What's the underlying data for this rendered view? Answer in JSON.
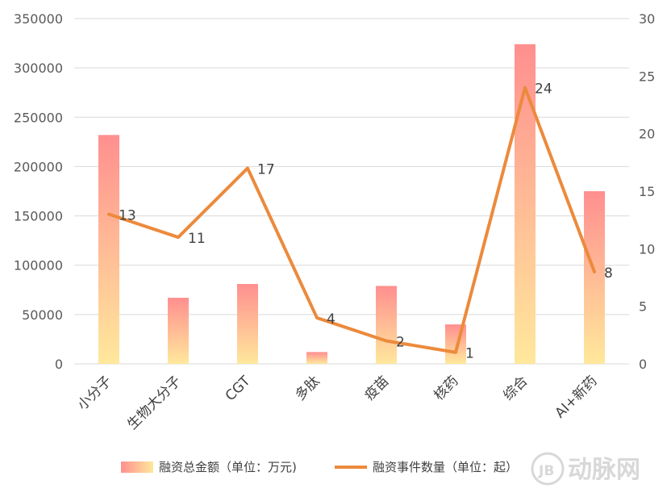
{
  "chart_data": {
    "type": "bar+line",
    "categories": [
      "小分子",
      "生物大分子",
      "CGT",
      "多肽",
      "疫苗",
      "核药",
      "综合",
      "AI+新药"
    ],
    "series": [
      {
        "name": "融资总金额（单位：万元)",
        "type": "bar",
        "axis": "left",
        "values": [
          232000,
          67000,
          81000,
          12000,
          79000,
          40000,
          324000,
          175000
        ]
      },
      {
        "name": "融资事件数量（单位：起）",
        "type": "line",
        "axis": "right",
        "values": [
          13,
          11,
          17,
          4,
          2,
          1,
          24,
          8
        ]
      }
    ],
    "y_left": {
      "ylim": [
        0,
        350000
      ],
      "ticks": [
        "0",
        "50000",
        "100000",
        "150000",
        "200000",
        "250000",
        "300000",
        "350000"
      ]
    },
    "y_right": {
      "ylim": [
        0,
        30
      ],
      "ticks": [
        "0",
        "5",
        "10",
        "15",
        "20",
        "25",
        "30"
      ]
    },
    "grid": true,
    "legend_position": "bottom",
    "colors": {
      "bar_top": "#ff8f8f",
      "bar_bottom": "#ffe89c",
      "line": "#ec8a3c",
      "grid": "#d9d9d9"
    }
  },
  "watermark": {
    "glyph": "JB",
    "text": "动脉网"
  }
}
